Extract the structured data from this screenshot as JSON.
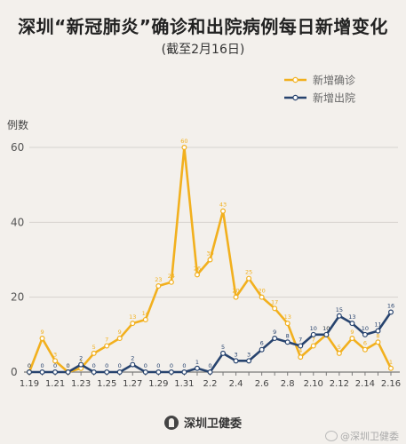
{
  "title": "深圳“新冠肺炎”确诊和出院病例每日新增变化",
  "subtitle": "(截至2月16日)",
  "footer": {
    "logo_text": "深圳卫健委",
    "watermark": "@深圳卫健委"
  },
  "colors": {
    "confirmed": "#f2b01e",
    "discharged": "#27436e",
    "background": "#f3f0ec"
  },
  "chart_data": {
    "type": "line",
    "ylabel": "例数",
    "xlabel": "",
    "ylim": [
      0,
      60
    ],
    "yticks": [
      0,
      20,
      40,
      60
    ],
    "x": [
      "1.19",
      "1.20",
      "1.21",
      "1.22",
      "1.23",
      "1.24",
      "1.25",
      "1.26",
      "1.27",
      "1.28",
      "1.29",
      "1.30",
      "1.31",
      "2.1",
      "2.2",
      "2.3",
      "2.4",
      "2.5",
      "2.6",
      "2.7",
      "2.8",
      "2.9",
      "2.10",
      "2.11",
      "2.12",
      "2.13",
      "2.14",
      "2.15",
      "2.16"
    ],
    "xtick_labels": [
      "1.19",
      "1.21",
      "1.23",
      "1.25",
      "1.27",
      "1.29",
      "1.31",
      "2.2",
      "2.4",
      "2.6",
      "2.8",
      "2.10",
      "2.12",
      "2.14",
      "2.16"
    ],
    "legend_position": "top-right",
    "series": [
      {
        "name": "新增确诊",
        "color": "#f2b01e",
        "values": [
          0,
          9,
          3,
          0,
          1,
          5,
          7,
          9,
          13,
          14,
          23,
          24,
          60,
          26,
          30,
          43,
          20,
          25,
          20,
          17,
          13,
          4,
          7,
          10,
          5,
          9,
          6,
          8,
          1
        ]
      },
      {
        "name": "新增出院",
        "color": "#27436e",
        "values": [
          0,
          0,
          0,
          0,
          2,
          0,
          0,
          0,
          2,
          0,
          0,
          0,
          0,
          1,
          0,
          5,
          3,
          3,
          6,
          9,
          8,
          7,
          10,
          10,
          15,
          13,
          10,
          11,
          16
        ]
      }
    ]
  }
}
